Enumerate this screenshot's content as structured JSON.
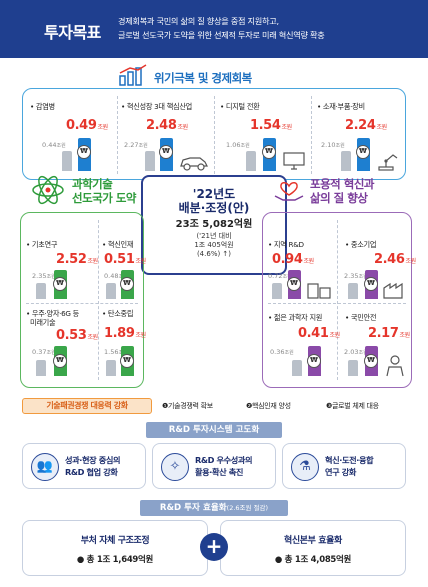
{
  "header": {
    "title": "투자목표",
    "desc_line1": "경제회복과 국민의 삶의 질 향상을 중점 지원하고,",
    "desc_line2": "글로벌 선도국가 도약을 위한 선제적 투자로 미래 혁신역량 확충"
  },
  "crisis": {
    "title": "위기극복 및 경제회복",
    "items": [
      {
        "label": "• 감염병",
        "prev": "0.44",
        "curr": "0.49"
      },
      {
        "label": "• 혁신성장 3대 핵심산업",
        "prev": "2.27",
        "curr": "2.48"
      },
      {
        "label": "• 디지털 전환",
        "prev": "1.06",
        "curr": "1.54"
      },
      {
        "label": "• 소재·부품·장비",
        "prev": "2.10",
        "curr": "2.24"
      }
    ]
  },
  "unit_label": "조원",
  "coin_symbol": "₩",
  "center": {
    "year": "'22년도",
    "sub": "배분·조정(안)",
    "total": "23조 5,082억원",
    "note1": "('21년 대비",
    "note2": "1조 405억원",
    "note3": "(4.6%) ↑)"
  },
  "science": {
    "title_line1": "과학기술",
    "title_line2": "선도국가 도약",
    "items": [
      {
        "label": "• 기초연구",
        "prev": "2.35",
        "curr": "2.52"
      },
      {
        "label": "• 혁신인재",
        "prev": "0.48",
        "curr": "0.51"
      },
      {
        "label": "• 우주·양자·6G 등",
        "label2": "미래기술",
        "prev": "0.37",
        "curr": "0.53"
      },
      {
        "label": "• 탄소중립",
        "prev": "1.56",
        "curr": "1.89"
      }
    ]
  },
  "inclusive": {
    "title_line1": "포용적 혁신과",
    "title_line2": "삶의 질 향상",
    "items": [
      {
        "label": "• 지역 R&D",
        "prev": "0.72",
        "curr": "0.94"
      },
      {
        "label": "• 중소기업",
        "prev": "2.35",
        "curr": "2.46"
      },
      {
        "label": "• 젊은 과학자 지원",
        "prev": "0.36",
        "curr": "0.41"
      },
      {
        "label": "• 국민안전",
        "prev": "2.03",
        "curr": "2.17"
      }
    ]
  },
  "strategy": {
    "pill": "기술패권경쟁 대응력 강화",
    "items": [
      "❶기술경쟁력 확보",
      "❷핵심인재 양성",
      "❸글로벌 체제 대응"
    ]
  },
  "system": {
    "band": "R&D 투자시스템 고도화",
    "cards": [
      {
        "icon": "people-icon",
        "line1": "성과·현장 중심의",
        "line2": "R&D 협업 강화"
      },
      {
        "icon": "spread-icon",
        "line1": "R&D 우수성과의",
        "line2": "활용·확산 촉진"
      },
      {
        "icon": "lab-icon",
        "line1": "혁신·도전·융합",
        "line2": "연구 강화"
      }
    ]
  },
  "efficiency": {
    "band": "R&D 투자 효율화",
    "band_sub": "(2.6조원 절감)",
    "left_title": "부처 자체 구조조정",
    "left_val": "● 총 1조 1,649억원",
    "right_title": "혁신본부 효율화",
    "right_val": "● 총 1조 4,085억원",
    "plus": "+"
  },
  "colors": {
    "navy": "#1f3f8f",
    "blue_bar": "#1e7fd0",
    "green_bar": "#3aa64a",
    "purple_bar": "#8a4aa8",
    "accent_red": "#e5352b",
    "orange": "#f19a3e"
  }
}
